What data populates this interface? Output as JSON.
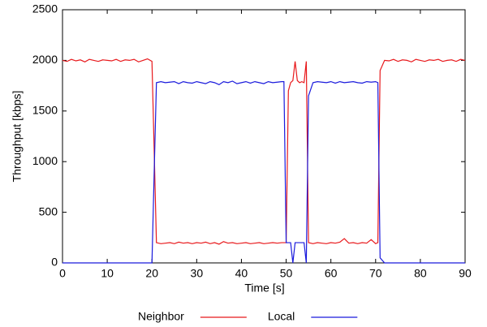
{
  "chart_data": {
    "type": "line",
    "x_label": "Time [s]",
    "y_label": "Throughput [kbps]",
    "x": [
      0,
      1,
      2,
      3,
      4,
      5,
      6,
      7,
      8,
      9,
      10,
      11,
      12,
      13,
      14,
      15,
      16,
      17,
      18,
      19,
      20,
      20.5,
      21,
      22,
      23,
      24,
      25,
      26,
      27,
      28,
      29,
      30,
      31,
      32,
      33,
      34,
      35,
      36,
      37,
      38,
      39,
      40,
      41,
      42,
      43,
      44,
      45,
      46,
      47,
      48,
      49,
      49.5,
      50,
      50.5,
      51,
      51.5,
      52,
      52.5,
      53,
      53.5,
      54,
      54.5,
      55,
      56,
      57,
      58,
      59,
      60,
      61,
      62,
      63,
      64,
      65,
      66,
      67,
      68,
      69,
      70,
      70.5,
      71,
      72,
      73,
      74,
      75,
      76,
      77,
      78,
      79,
      80,
      81,
      82,
      83,
      84,
      85,
      86,
      87,
      88,
      89,
      90
    ],
    "series": [
      {
        "name": "Neighbor",
        "color": "#e8191c",
        "values": [
          2000,
          1990,
          2010,
          1995,
          2005,
          1985,
          2010,
          2000,
          1990,
          2005,
          2000,
          1995,
          2010,
          1990,
          2005,
          2000,
          2010,
          1985,
          2000,
          2015,
          1990,
          1100,
          200,
          190,
          195,
          200,
          190,
          205,
          195,
          200,
          190,
          200,
          195,
          205,
          190,
          200,
          185,
          210,
          195,
          200,
          190,
          195,
          200,
          190,
          195,
          200,
          190,
          195,
          200,
          195,
          200,
          200,
          200,
          1700,
          1780,
          1800,
          1990,
          1800,
          1780,
          1790,
          1780,
          1990,
          200,
          190,
          200,
          195,
          190,
          200,
          195,
          205,
          240,
          195,
          200,
          190,
          200,
          195,
          230,
          190,
          200,
          1900,
          2000,
          1995,
          2010,
          1990,
          2005,
          2000,
          1985,
          2010,
          2000,
          1990,
          2005,
          2000,
          2010,
          1990,
          2000,
          2005,
          1990,
          2010,
          2000
        ]
      },
      {
        "name": "Local",
        "color": "#1a1adc",
        "values": [
          0,
          0,
          0,
          0,
          0,
          0,
          0,
          0,
          0,
          0,
          0,
          0,
          0,
          0,
          0,
          0,
          0,
          0,
          0,
          0,
          0,
          900,
          1780,
          1790,
          1780,
          1785,
          1790,
          1770,
          1790,
          1780,
          1775,
          1790,
          1780,
          1770,
          1790,
          1780,
          1760,
          1790,
          1780,
          1795,
          1770,
          1780,
          1790,
          1775,
          1790,
          1780,
          1770,
          1790,
          1780,
          1785,
          1790,
          1790,
          200,
          200,
          200,
          0,
          200,
          200,
          200,
          200,
          200,
          0,
          1650,
          1780,
          1790,
          1785,
          1780,
          1790,
          1775,
          1790,
          1780,
          1785,
          1790,
          1780,
          1775,
          1790,
          1785,
          1790,
          1780,
          50,
          0,
          0,
          0,
          0,
          0,
          0,
          0,
          0,
          0,
          0,
          0,
          0,
          0,
          0,
          0,
          0,
          0,
          0,
          0
        ]
      }
    ],
    "xlim": [
      0,
      90
    ],
    "xticks": [
      0,
      10,
      20,
      30,
      40,
      50,
      60,
      70,
      80,
      90
    ],
    "ylim": [
      0,
      2500
    ],
    "yticks": [
      0,
      500,
      1000,
      1500,
      2000,
      2500
    ],
    "legend": "bottom"
  }
}
